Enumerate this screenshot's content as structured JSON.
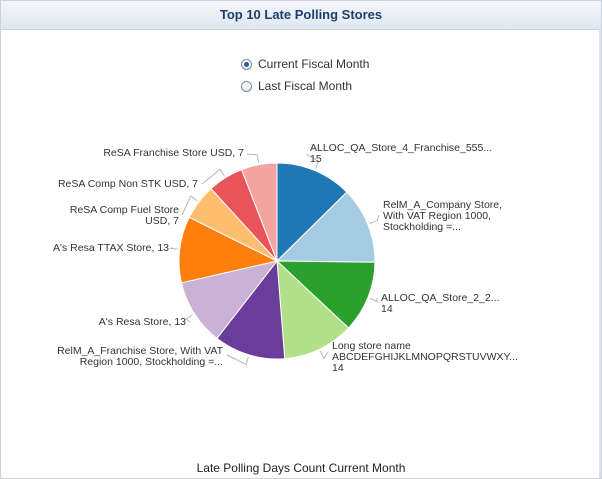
{
  "panel": {
    "title": "Top 10 Late Polling Stores"
  },
  "filters": {
    "options": [
      {
        "label": "Current Fiscal Month",
        "selected": true
      },
      {
        "label": "Last Fiscal Month",
        "selected": false
      }
    ]
  },
  "chart_data": {
    "type": "pie",
    "footer_label": "Late Polling Days Count Current Month",
    "slices": [
      {
        "label_lines": [
          "ALLOC_QA_Store_4_Franchise_555...",
          "15"
        ],
        "value": 15,
        "color": "#1f77b4"
      },
      {
        "label_lines": [
          "RelM_A_Company Store,",
          "With VAT Region 1000,",
          "Stockholding =..."
        ],
        "value": 15,
        "color": "#a6cce3"
      },
      {
        "label_lines": [
          "ALLOC_QA_Store_2_2...",
          "14"
        ],
        "value": 14,
        "color": "#2ca02c"
      },
      {
        "label_lines": [
          "Long store name",
          "ABCDEFGHIJKLMNOPQRSTUVWXY...",
          "14"
        ],
        "value": 14,
        "color": "#b2df8a"
      },
      {
        "label_lines": [
          "RelM_A_Franchise Store, With VAT",
          "Region 1000, Stockholding =..."
        ],
        "value": 14,
        "color": "#6a3d9a"
      },
      {
        "label_lines": [
          "A's Resa Store, 13"
        ],
        "value": 13,
        "color": "#cab2d6"
      },
      {
        "label_lines": [
          "A's Resa TTAX Store, 13"
        ],
        "value": 13,
        "color": "#ff7f0e"
      },
      {
        "label_lines": [
          "ReSA Comp Fuel Store",
          "USD, 7"
        ],
        "value": 7,
        "color": "#fdbf6f"
      },
      {
        "label_lines": [
          "ReSA Comp Non STK USD, 7"
        ],
        "value": 7,
        "color": "#e8545a"
      },
      {
        "label_lines": [
          "ReSA Franchise Store USD, 7"
        ],
        "value": 7,
        "color": "#f4a3a0"
      }
    ]
  }
}
